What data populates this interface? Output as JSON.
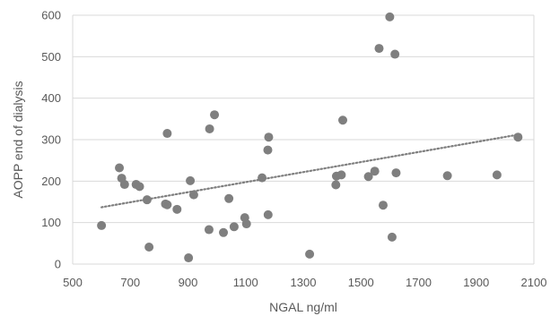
{
  "chart_data": {
    "type": "scatter",
    "xlabel": "NGAL ng/ml",
    "ylabel": "AOPP end of dialysis",
    "xlim": [
      500,
      2100
    ],
    "ylim": [
      0,
      600
    ],
    "x_ticks": [
      "500",
      "700",
      "900",
      "1100",
      "1300",
      "1500",
      "1700",
      "1900",
      "2100"
    ],
    "y_ticks": [
      "0",
      "100",
      "200",
      "300",
      "400",
      "500",
      "600"
    ],
    "grid": "horizontal",
    "trendline": {
      "style": "dotted",
      "type": "linear"
    },
    "colors": {
      "marker": "#7f7f7f",
      "trendline": "#7f7f7f",
      "grid": "#d9d9d9",
      "text": "#595959"
    },
    "points": [
      {
        "x": 600,
        "y": 93
      },
      {
        "x": 662,
        "y": 232
      },
      {
        "x": 670,
        "y": 207
      },
      {
        "x": 680,
        "y": 192
      },
      {
        "x": 720,
        "y": 192
      },
      {
        "x": 732,
        "y": 187
      },
      {
        "x": 758,
        "y": 155
      },
      {
        "x": 765,
        "y": 41
      },
      {
        "x": 822,
        "y": 145
      },
      {
        "x": 828,
        "y": 143
      },
      {
        "x": 828,
        "y": 315
      },
      {
        "x": 862,
        "y": 132
      },
      {
        "x": 902,
        "y": 15
      },
      {
        "x": 908,
        "y": 201
      },
      {
        "x": 920,
        "y": 167
      },
      {
        "x": 973,
        "y": 83
      },
      {
        "x": 975,
        "y": 326
      },
      {
        "x": 992,
        "y": 360
      },
      {
        "x": 1023,
        "y": 76
      },
      {
        "x": 1042,
        "y": 158
      },
      {
        "x": 1060,
        "y": 90
      },
      {
        "x": 1097,
        "y": 112
      },
      {
        "x": 1103,
        "y": 97
      },
      {
        "x": 1157,
        "y": 208
      },
      {
        "x": 1177,
        "y": 275
      },
      {
        "x": 1178,
        "y": 119
      },
      {
        "x": 1180,
        "y": 306
      },
      {
        "x": 1322,
        "y": 24
      },
      {
        "x": 1413,
        "y": 191
      },
      {
        "x": 1415,
        "y": 212
      },
      {
        "x": 1432,
        "y": 215
      },
      {
        "x": 1437,
        "y": 347
      },
      {
        "x": 1526,
        "y": 211
      },
      {
        "x": 1548,
        "y": 224
      },
      {
        "x": 1563,
        "y": 520
      },
      {
        "x": 1577,
        "y": 142
      },
      {
        "x": 1600,
        "y": 596
      },
      {
        "x": 1608,
        "y": 65
      },
      {
        "x": 1618,
        "y": 506
      },
      {
        "x": 1622,
        "y": 220
      },
      {
        "x": 1800,
        "y": 213
      },
      {
        "x": 1972,
        "y": 215
      },
      {
        "x": 2045,
        "y": 306
      }
    ],
    "trend": [
      {
        "x": 600,
        "y": 137
      },
      {
        "x": 2045,
        "y": 312
      }
    ]
  }
}
